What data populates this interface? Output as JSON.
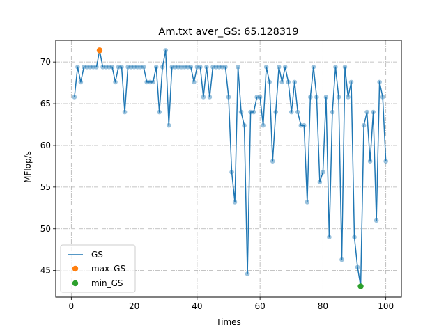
{
  "chart_data": {
    "type": "line",
    "title": "Am.txt aver_GS: 65.128319",
    "xlabel": "Times",
    "ylabel": "MFlop/s",
    "xlim": [
      -4.95,
      104.95
    ],
    "ylim": [
      41.8,
      72.6
    ],
    "xticks": [
      0,
      20,
      40,
      60,
      80,
      100
    ],
    "yticks": [
      45,
      50,
      55,
      60,
      65,
      70
    ],
    "grid": true,
    "legend_position": "lower-left",
    "colors": {
      "line": "#1f77b4",
      "max": "#ff7f0e",
      "min": "#2ca02c"
    },
    "series": [
      {
        "name": "GS",
        "x": [
          1,
          2,
          3,
          4,
          5,
          6,
          7,
          8,
          9,
          10,
          11,
          12,
          13,
          14,
          15,
          16,
          17,
          18,
          19,
          20,
          21,
          22,
          23,
          24,
          25,
          26,
          27,
          28,
          29,
          30,
          31,
          32,
          33,
          34,
          35,
          36,
          37,
          38,
          39,
          40,
          41,
          42,
          43,
          44,
          45,
          46,
          47,
          48,
          49,
          50,
          51,
          52,
          53,
          54,
          55,
          56,
          57,
          58,
          59,
          60,
          61,
          62,
          63,
          64,
          65,
          66,
          67,
          68,
          69,
          70,
          71,
          72,
          73,
          74,
          75,
          76,
          77,
          78,
          79,
          80,
          81,
          82,
          83,
          84,
          85,
          86,
          87,
          88,
          89,
          90,
          91,
          92,
          93,
          94,
          95,
          96,
          97,
          98,
          99,
          100
        ],
        "y": [
          65.8,
          69.4,
          67.6,
          69.4,
          69.4,
          69.4,
          69.4,
          69.4,
          71.4,
          69.4,
          69.4,
          69.4,
          69.4,
          67.6,
          69.4,
          69.4,
          64.0,
          69.4,
          69.4,
          69.4,
          69.4,
          69.4,
          69.4,
          67.6,
          67.6,
          67.6,
          69.4,
          64.0,
          69.4,
          71.4,
          62.4,
          69.4,
          69.4,
          69.4,
          69.4,
          69.4,
          69.4,
          69.4,
          67.6,
          69.4,
          69.4,
          65.8,
          69.4,
          65.8,
          69.4,
          69.4,
          69.4,
          69.4,
          69.4,
          65.8,
          56.8,
          53.2,
          69.4,
          64.0,
          62.4,
          44.6,
          64.0,
          64.0,
          65.8,
          65.8,
          62.4,
          69.4,
          67.6,
          58.1,
          64.0,
          69.4,
          67.6,
          69.4,
          67.6,
          64.0,
          67.6,
          64.0,
          62.4,
          62.4,
          53.2,
          65.8,
          69.4,
          65.8,
          55.6,
          56.8,
          65.8,
          49.0,
          64.0,
          69.4,
          65.8,
          46.3,
          69.4,
          65.8,
          67.6,
          49.0,
          45.4,
          43.1,
          62.4,
          64.0,
          58.1,
          64.0,
          51.0,
          67.6,
          65.8,
          58.1
        ]
      },
      {
        "name": "max_GS",
        "x": [
          9
        ],
        "y": [
          71.4
        ]
      },
      {
        "name": "min_GS",
        "x": [
          92
        ],
        "y": [
          43.1
        ]
      }
    ]
  }
}
